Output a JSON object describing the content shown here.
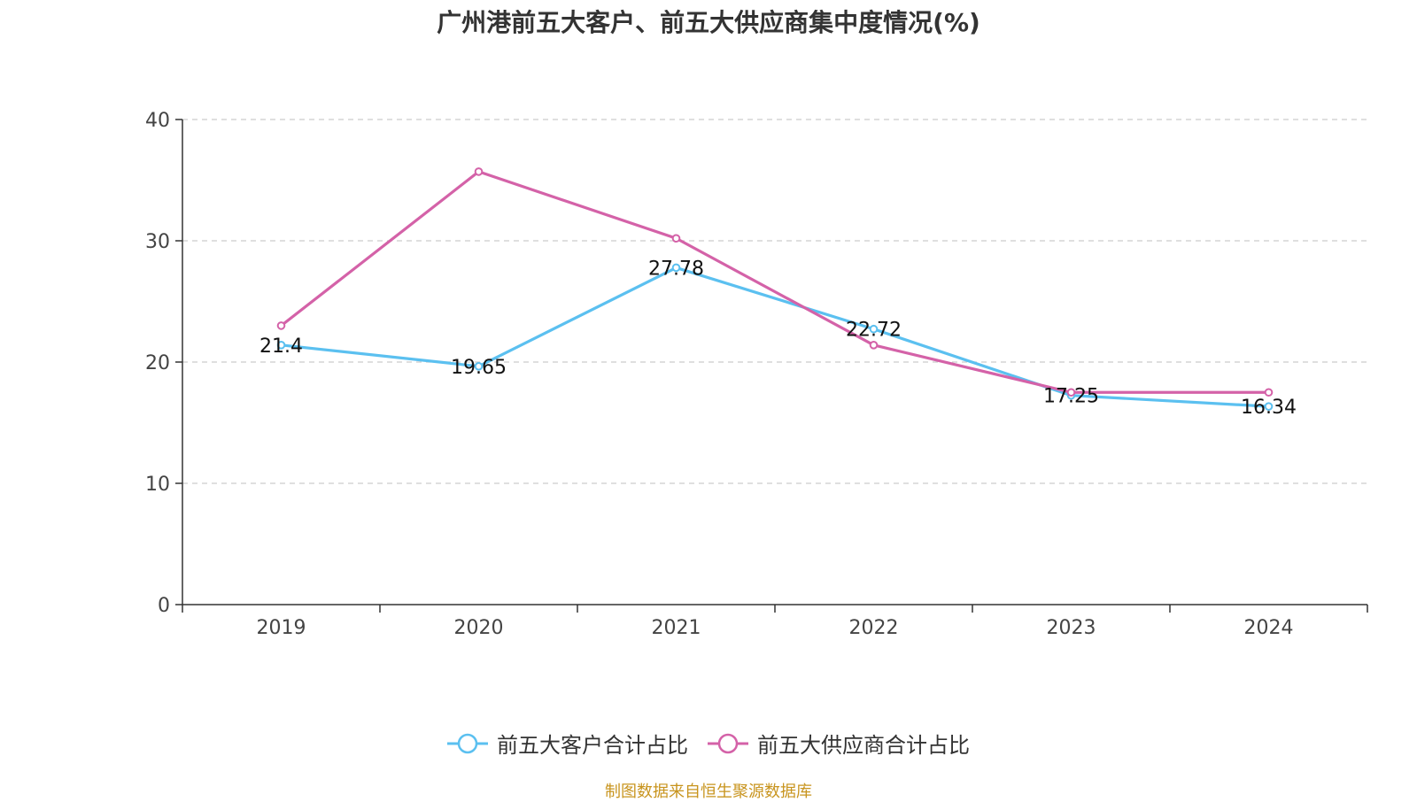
{
  "chart_data": {
    "type": "line",
    "title": "广州港前五大客户、前五大供应商集中度情况(%)",
    "categories": [
      "2019",
      "2020",
      "2021",
      "2022",
      "2023",
      "2024"
    ],
    "ylim": [
      0,
      40
    ],
    "yticks": [
      "0",
      "10",
      "20",
      "30",
      "40"
    ],
    "grid": true,
    "legend_position": "bottom",
    "series": [
      {
        "name": "前五大客户合计占比",
        "color": "#5bc0f0",
        "values": [
          21.4,
          19.65,
          27.78,
          22.72,
          17.25,
          16.34
        ],
        "labels": [
          "21.4",
          "19.65",
          "27.78",
          "22.72",
          "17.25",
          "16.34"
        ]
      },
      {
        "name": "前五大供应商合计占比",
        "color": "#d462a8",
        "values": [
          23.0,
          35.7,
          30.2,
          21.4,
          17.5,
          17.5
        ]
      }
    ]
  },
  "source": {
    "text": "制图数据来自恒生聚源数据库",
    "color": "#c8941e"
  }
}
